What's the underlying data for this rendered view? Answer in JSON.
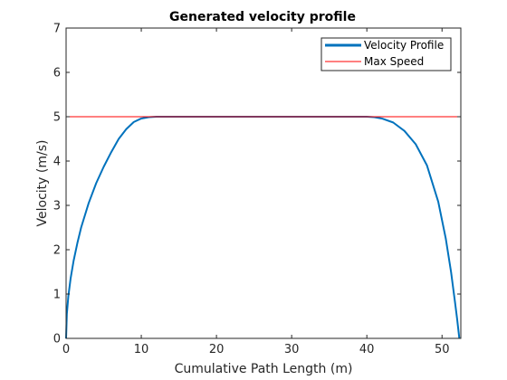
{
  "chart_data": {
    "type": "line",
    "title": "Generated velocity profile",
    "xlabel": "Cumulative Path Length (m)",
    "ylabel": "Velocity (m/s)",
    "xlim": [
      0,
      52.5
    ],
    "ylim": [
      0,
      7
    ],
    "xticks": [
      0,
      10,
      20,
      30,
      40,
      50
    ],
    "yticks": [
      0,
      1,
      2,
      3,
      4,
      5,
      6,
      7
    ],
    "grid": false,
    "legend_position": "top-right",
    "series": [
      {
        "name": "Velocity Profile",
        "color": "#0072BD",
        "style": "thick-line",
        "x": [
          0,
          0.1,
          0.3,
          0.6,
          1.0,
          1.5,
          2.0,
          3.0,
          4.0,
          5.0,
          6.0,
          7.0,
          8.0,
          9.0,
          10.0,
          11.0,
          12.0,
          20.0,
          30.0,
          40.0,
          41.0,
          42.0,
          43.5,
          45.0,
          46.5,
          48.0,
          49.5,
          50.5,
          51.2,
          51.7,
          52.0,
          52.2,
          52.3
        ],
        "y": [
          0,
          0.55,
          0.95,
          1.35,
          1.75,
          2.15,
          2.5,
          3.05,
          3.5,
          3.87,
          4.2,
          4.5,
          4.72,
          4.88,
          4.96,
          4.99,
          5.0,
          5.0,
          5.0,
          5.0,
          4.99,
          4.96,
          4.87,
          4.68,
          4.38,
          3.9,
          3.08,
          2.25,
          1.5,
          0.85,
          0.45,
          0.15,
          0
        ]
      },
      {
        "name": "Max Speed",
        "color": "#FF0000",
        "style": "thin-line",
        "x": [
          0,
          52.5
        ],
        "y": [
          5,
          5
        ]
      }
    ]
  }
}
